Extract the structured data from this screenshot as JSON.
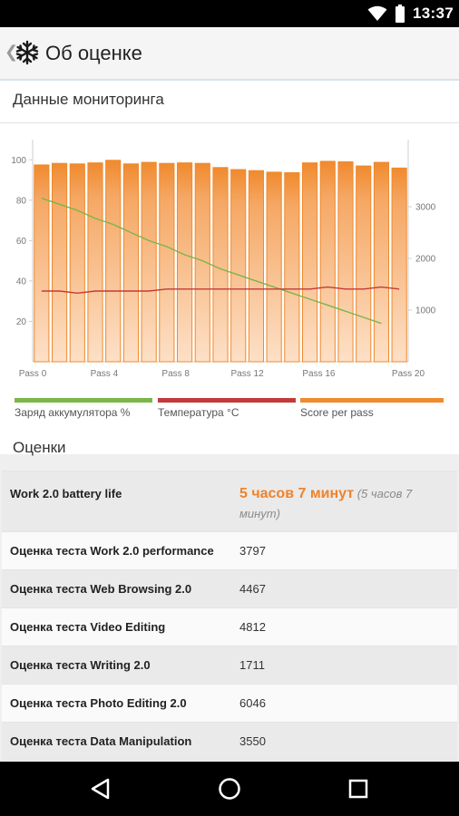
{
  "status_bar": {
    "time": "13:37",
    "icons": [
      "wifi-icon",
      "battery-icon"
    ]
  },
  "app_bar": {
    "title": "Об оценке",
    "icon": "snowflake-icon"
  },
  "monitoring": {
    "title": "Данные мониторинга",
    "legend": [
      {
        "label": "Заряд аккумулятора %",
        "color": "#7ab648"
      },
      {
        "label": "Температура °C",
        "color": "#c23b3b"
      },
      {
        "label": "Score per pass",
        "color": "#f08a2e"
      }
    ]
  },
  "chart_data": {
    "type": "bar",
    "categories": [
      "Pass 0",
      "Pass 1",
      "Pass 2",
      "Pass 3",
      "Pass 4",
      "Pass 5",
      "Pass 6",
      "Pass 7",
      "Pass 8",
      "Pass 9",
      "Pass 10",
      "Pass 11",
      "Pass 12",
      "Pass 13",
      "Pass 14",
      "Pass 15",
      "Pass 16",
      "Pass 17",
      "Pass 18",
      "Pass 19",
      "Pass 20"
    ],
    "x_tick_labels": [
      "Pass 0",
      "Pass 4",
      "Pass 8",
      "Pass 12",
      "Pass 16",
      "Pass 20"
    ],
    "y_left": {
      "ticks": [
        20,
        40,
        60,
        80,
        100
      ],
      "range": [
        0,
        110
      ]
    },
    "y_right": {
      "ticks": [
        1000,
        2000,
        3000
      ],
      "range": [
        0,
        4300
      ]
    },
    "series": [
      {
        "name": "Score per pass",
        "axis": "right",
        "type": "bar",
        "color": "#f08a2e",
        "values": [
          3810,
          3840,
          3830,
          3850,
          3900,
          3830,
          3860,
          3840,
          3850,
          3840,
          3760,
          3720,
          3700,
          3670,
          3660,
          3850,
          3880,
          3870,
          3790,
          3860,
          3750
        ]
      },
      {
        "name": "Заряд аккумулятора %",
        "axis": "left",
        "type": "line",
        "color": "#7ab648",
        "values": [
          81,
          78,
          75,
          71,
          68,
          64,
          60,
          57,
          53,
          50,
          46,
          43,
          40,
          37,
          34,
          31,
          28,
          25,
          22,
          19,
          null
        ]
      },
      {
        "name": "Температура °C",
        "axis": "left",
        "type": "line",
        "color": "#c23b3b",
        "values": [
          35,
          35,
          34,
          35,
          35,
          35,
          35,
          36,
          36,
          36,
          36,
          36,
          36,
          36,
          36,
          36,
          37,
          36,
          36,
          37,
          36
        ]
      }
    ],
    "grid": false,
    "legend": "bottom"
  },
  "scores": {
    "title": "Оценки",
    "battery": {
      "label": "Work 2.0 battery life",
      "value_main": "5 часов 7 минут",
      "value_sub": " (5 часов 7 минут)"
    },
    "rows": [
      {
        "label": "Оценка теста Work 2.0 performance",
        "value": "3797"
      },
      {
        "label": "Оценка теста Web Browsing 2.0",
        "value": "4467"
      },
      {
        "label": "Оценка теста Video Editing",
        "value": "4812"
      },
      {
        "label": "Оценка теста Writing 2.0",
        "value": "1711"
      },
      {
        "label": "Оценка теста Photo Editing 2.0",
        "value": "6046"
      },
      {
        "label": "Оценка теста Data Manipulation",
        "value": "3550"
      }
    ]
  },
  "nav": {
    "buttons": [
      "back-icon",
      "home-icon",
      "recents-icon"
    ]
  }
}
